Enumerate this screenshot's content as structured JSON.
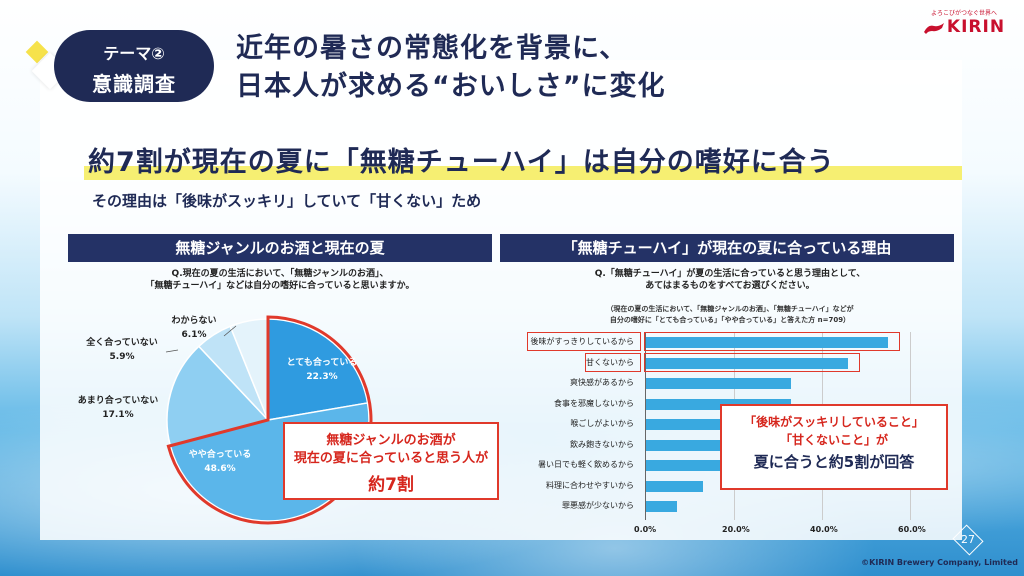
{
  "theme": {
    "line1": "テーマ②",
    "line2": "意識調査"
  },
  "title": {
    "line1": "近年の暑さの常態化を背景に、",
    "line2": "日本人が求める“おいしさ”に変化"
  },
  "logo": {
    "tagline": "よろこびがつなぐ世界へ",
    "brand": "KIRIN",
    "color": "#c8102e"
  },
  "headline": "約7割が現在の夏に「無糖チューハイ」は自分の嗜好に合う",
  "subhead": "その理由は「後味がスッキリ」していて「甘くない」ため",
  "left_section": {
    "header": "無糖ジャンルのお酒と現在の夏",
    "question_line1": "Q.現在の夏の生活において、「無糖ジャンルのお酒」、",
    "question_line2": "「無糖チューハイ」などは自分の嗜好に合っていると思いますか。",
    "callout_line1": "無糖ジャンルのお酒が",
    "callout_line2": "現在の夏に合っていると思う人が",
    "callout_line3": "約7割"
  },
  "right_section": {
    "header": "「無糖チューハイ」が現在の夏に合っている理由",
    "question_line1": "Q.「無糖チューハイ」が夏の生活に合っていると思う理由として、",
    "question_line2": "あてはまるものをすべてお選びください。",
    "note_line1": "（現在の夏の生活において、「無糖ジャンルのお酒」、「無糖チューハイ」などが",
    "note_line2": "自分の嗜好に「とても合っている」「やや合っている」と答えた方 n=709）",
    "callout_line1": "「後味がスッキリしていること」",
    "callout_line2": "「甘くないこと」が",
    "callout_line3": "夏に合うと約5割が回答"
  },
  "chart_data": [
    {
      "type": "pie",
      "title": "",
      "slices": [
        {
          "label": "とても合っている",
          "value": 22.3,
          "display": "22.3%",
          "color": "#2f9be0"
        },
        {
          "label": "やや合っている",
          "value": 48.6,
          "display": "48.6%",
          "color": "#5bb6ea"
        },
        {
          "label": "あまり合っていない",
          "value": 17.1,
          "display": "17.1%",
          "color": "#8fcff2"
        },
        {
          "label": "全く合っていない",
          "value": 5.9,
          "display": "5.9%",
          "color": "#bfe3f7"
        },
        {
          "label": "わからない",
          "value": 6.1,
          "display": "6.1%",
          "color": "#e4f3fb"
        }
      ]
    },
    {
      "type": "bar",
      "orientation": "horizontal",
      "xlim": [
        0,
        60
      ],
      "ticks": [
        "0.0%",
        "20.0%",
        "40.0%",
        "60.0%"
      ],
      "categories": [
        "後味がすっきりしているから",
        "甘くないから",
        "爽快感があるから",
        "食事を邪魔しないから",
        "喉ごしがよいから",
        "飲み飽きないから",
        "暑い日でも軽く飲めるから",
        "料理に合わせやすいから",
        "罪悪感が少ないから"
      ],
      "values": [
        55,
        46,
        33,
        33,
        27,
        24,
        21,
        13,
        7
      ],
      "highlighted": [
        0,
        1
      ],
      "color": "#39a9e0"
    }
  ],
  "page_number": "27",
  "copyright": "©KIRIN Brewery Company, Limited"
}
